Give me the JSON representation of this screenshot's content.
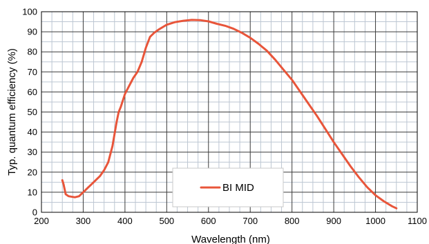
{
  "chart_data": {
    "type": "line",
    "title": "",
    "xlabel": "Wavelength (nm)",
    "ylabel": "Typ. quantum efficiency (%)",
    "xlim": [
      200,
      1100
    ],
    "ylim": [
      0,
      100
    ],
    "x_major_ticks": [
      200,
      300,
      400,
      500,
      600,
      700,
      800,
      900,
      1000,
      1100
    ],
    "x_tick_labels": [
      "200",
      "300",
      "400",
      "500",
      "600",
      "700",
      "800",
      "900",
      "1000",
      "1100"
    ],
    "y_major_ticks": [
      0,
      10,
      20,
      30,
      40,
      50,
      60,
      70,
      80,
      90,
      100
    ],
    "y_tick_labels": [
      "0",
      "10",
      "20",
      "30",
      "40",
      "50",
      "60",
      "70",
      "80",
      "90",
      "100"
    ],
    "x_minor_step": 25,
    "y_minor_step": 5,
    "grid": true,
    "legend_position": "bottom-center",
    "series": [
      {
        "name": "BI MID",
        "color": "#e8553a",
        "points": [
          [
            250,
            16
          ],
          [
            253,
            14
          ],
          [
            258,
            9
          ],
          [
            265,
            8
          ],
          [
            280,
            7.5
          ],
          [
            290,
            8
          ],
          [
            300,
            10
          ],
          [
            320,
            14
          ],
          [
            340,
            18
          ],
          [
            350,
            21
          ],
          [
            360,
            25
          ],
          [
            370,
            33
          ],
          [
            380,
            45
          ],
          [
            385,
            50
          ],
          [
            390,
            52.5
          ],
          [
            400,
            59
          ],
          [
            410,
            63
          ],
          [
            420,
            67
          ],
          [
            430,
            70
          ],
          [
            440,
            75
          ],
          [
            450,
            82
          ],
          [
            460,
            87.5
          ],
          [
            470,
            89.5
          ],
          [
            480,
            91
          ],
          [
            500,
            93.5
          ],
          [
            520,
            94.8
          ],
          [
            540,
            95.5
          ],
          [
            560,
            95.9
          ],
          [
            580,
            95.8
          ],
          [
            600,
            95.2
          ],
          [
            620,
            94
          ],
          [
            640,
            93
          ],
          [
            660,
            91.5
          ],
          [
            680,
            89.5
          ],
          [
            700,
            87
          ],
          [
            720,
            84
          ],
          [
            740,
            80.5
          ],
          [
            760,
            76
          ],
          [
            780,
            71
          ],
          [
            800,
            66
          ],
          [
            820,
            60
          ],
          [
            840,
            54
          ],
          [
            860,
            48
          ],
          [
            880,
            41.5
          ],
          [
            900,
            35
          ],
          [
            920,
            29
          ],
          [
            940,
            23
          ],
          [
            960,
            17.5
          ],
          [
            980,
            12.5
          ],
          [
            1000,
            8.5
          ],
          [
            1020,
            5.5
          ],
          [
            1040,
            3
          ],
          [
            1050,
            2
          ]
        ]
      }
    ]
  }
}
